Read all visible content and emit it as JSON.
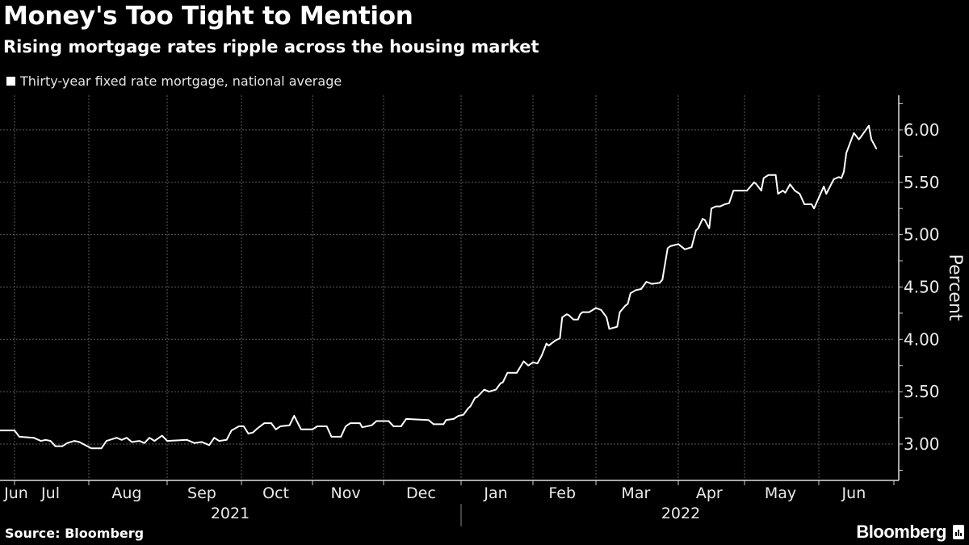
{
  "header": {
    "title": "Money's Too Tight to Mention",
    "subtitle": "Rising mortgage rates ripple across the housing market"
  },
  "footer": {
    "source": "Source: Bloomberg",
    "logo": "Bloomberg"
  },
  "colors": {
    "background": "#000000",
    "line": "#ffffff",
    "grid": "#5a5a5a"
  },
  "chart_data": {
    "type": "line",
    "title": "Money's Too Tight to Mention",
    "subtitle": "Rising mortgage rates ripple across the housing market",
    "ylabel": "Percent",
    "xlabel": "",
    "ylim": [
      2.66,
      6.35
    ],
    "yticks": [
      "3.00",
      "3.50",
      "4.00",
      "4.50",
      "5.00",
      "5.50",
      "6.00"
    ],
    "xticks": [
      {
        "label": "Jun",
        "date": "2021-06-15"
      },
      {
        "label": "Jul",
        "date": "2021-07-16"
      },
      {
        "label": "Aug",
        "date": "2021-08-16"
      },
      {
        "label": "Sep",
        "date": "2021-09-15"
      },
      {
        "label": "Oct",
        "date": "2021-10-16"
      },
      {
        "label": "Nov",
        "date": "2021-11-15"
      },
      {
        "label": "Dec",
        "date": "2021-12-16"
      },
      {
        "label": "Jan",
        "date": "2022-01-16"
      },
      {
        "label": "Feb",
        "date": "2022-02-14"
      },
      {
        "label": "Mar",
        "date": "2022-03-16"
      },
      {
        "label": "Apr",
        "date": "2022-04-15"
      },
      {
        "label": "May",
        "date": "2022-05-16"
      },
      {
        "label": "Jun",
        "date": "2022-06-15"
      }
    ],
    "year_labels": [
      "2021",
      "2022"
    ],
    "grid": true,
    "legend_position": "top-left",
    "series": [
      {
        "name": "Thirty-year fixed rate mortgage, national average",
        "points": [
          [
            "2021-06-25",
            3.13
          ],
          [
            "2021-07-01",
            3.13
          ],
          [
            "2021-07-03",
            3.07
          ],
          [
            "2021-07-09",
            3.06
          ],
          [
            "2021-07-12",
            3.03
          ],
          [
            "2021-07-14",
            3.04
          ],
          [
            "2021-07-16",
            3.03
          ],
          [
            "2021-07-18",
            2.98
          ],
          [
            "2021-07-21",
            2.98
          ],
          [
            "2021-07-23",
            3.01
          ],
          [
            "2021-07-26",
            3.03
          ],
          [
            "2021-07-28",
            3.02
          ],
          [
            "2021-08-02",
            2.96
          ],
          [
            "2021-08-06",
            2.96
          ],
          [
            "2021-08-08",
            3.03
          ],
          [
            "2021-08-12",
            3.06
          ],
          [
            "2021-08-14",
            3.04
          ],
          [
            "2021-08-16",
            3.06
          ],
          [
            "2021-08-18",
            3.02
          ],
          [
            "2021-08-21",
            3.03
          ],
          [
            "2021-08-23",
            3.01
          ],
          [
            "2021-08-25",
            3.06
          ],
          [
            "2021-08-27",
            3.03
          ],
          [
            "2021-08-30",
            3.08
          ],
          [
            "2021-09-01",
            3.03
          ],
          [
            "2021-09-09",
            3.04
          ],
          [
            "2021-09-12",
            3.01
          ],
          [
            "2021-09-15",
            3.02
          ],
          [
            "2021-09-18",
            2.99
          ],
          [
            "2021-09-20",
            3.06
          ],
          [
            "2021-09-22",
            3.03
          ],
          [
            "2021-09-25",
            3.04
          ],
          [
            "2021-09-27",
            3.13
          ],
          [
            "2021-09-30",
            3.17
          ],
          [
            "2021-10-02",
            3.17
          ],
          [
            "2021-10-04",
            3.1
          ],
          [
            "2021-10-06",
            3.11
          ],
          [
            "2021-10-08",
            3.15
          ],
          [
            "2021-10-11",
            3.2
          ],
          [
            "2021-10-14",
            3.2
          ],
          [
            "2021-10-16",
            3.14
          ],
          [
            "2021-10-18",
            3.17
          ],
          [
            "2021-10-22",
            3.18
          ],
          [
            "2021-10-24",
            3.27
          ],
          [
            "2021-10-27",
            3.14
          ],
          [
            "2021-11-01",
            3.14
          ],
          [
            "2021-11-03",
            3.17
          ],
          [
            "2021-11-07",
            3.17
          ],
          [
            "2021-11-09",
            3.07
          ],
          [
            "2021-11-13",
            3.07
          ],
          [
            "2021-11-15",
            3.17
          ],
          [
            "2021-11-17",
            3.2
          ],
          [
            "2021-11-21",
            3.2
          ],
          [
            "2021-11-22",
            3.16
          ],
          [
            "2021-11-26",
            3.18
          ],
          [
            "2021-11-28",
            3.22
          ],
          [
            "2021-12-03",
            3.22
          ],
          [
            "2021-12-05",
            3.17
          ],
          [
            "2021-12-08",
            3.17
          ],
          [
            "2021-12-10",
            3.24
          ],
          [
            "2021-12-19",
            3.23
          ],
          [
            "2021-12-21",
            3.19
          ],
          [
            "2021-12-25",
            3.19
          ],
          [
            "2021-12-26",
            3.23
          ],
          [
            "2021-12-29",
            3.24
          ],
          [
            "2021-12-31",
            3.27
          ],
          [
            "2022-01-02",
            3.28
          ],
          [
            "2022-01-04",
            3.34
          ],
          [
            "2022-01-05",
            3.36
          ],
          [
            "2022-01-07",
            3.44
          ],
          [
            "2022-01-08",
            3.45
          ],
          [
            "2022-01-11",
            3.52
          ],
          [
            "2022-01-13",
            3.5
          ],
          [
            "2022-01-16",
            3.52
          ],
          [
            "2022-01-18",
            3.58
          ],
          [
            "2022-01-19",
            3.59
          ],
          [
            "2022-01-21",
            3.68
          ],
          [
            "2022-01-25",
            3.68
          ],
          [
            "2022-01-28",
            3.79
          ],
          [
            "2022-01-30",
            3.75
          ],
          [
            "2022-02-01",
            3.78
          ],
          [
            "2022-02-03",
            3.77
          ],
          [
            "2022-02-05",
            3.85
          ],
          [
            "2022-02-07",
            3.96
          ],
          [
            "2022-02-08",
            3.94
          ],
          [
            "2022-02-11",
            3.99
          ],
          [
            "2022-02-13",
            4.01
          ],
          [
            "2022-02-14",
            4.21
          ],
          [
            "2022-02-16",
            4.24
          ],
          [
            "2022-02-17",
            4.23
          ],
          [
            "2022-02-19",
            4.19
          ],
          [
            "2022-02-21",
            4.19
          ],
          [
            "2022-02-22",
            4.24
          ],
          [
            "2022-02-23",
            4.26
          ],
          [
            "2022-02-26",
            4.26
          ],
          [
            "2022-03-01",
            4.3
          ],
          [
            "2022-03-03",
            4.28
          ],
          [
            "2022-03-05",
            4.21
          ],
          [
            "2022-03-06",
            4.1
          ],
          [
            "2022-03-09",
            4.12
          ],
          [
            "2022-03-10",
            4.26
          ],
          [
            "2022-03-12",
            4.32
          ],
          [
            "2022-03-13",
            4.34
          ],
          [
            "2022-03-14",
            4.44
          ],
          [
            "2022-03-16",
            4.47
          ],
          [
            "2022-03-18",
            4.48
          ],
          [
            "2022-03-20",
            4.55
          ],
          [
            "2022-03-22",
            4.53
          ],
          [
            "2022-03-25",
            4.54
          ],
          [
            "2022-03-26",
            4.57
          ],
          [
            "2022-03-28",
            4.87
          ],
          [
            "2022-03-29",
            4.89
          ],
          [
            "2022-04-01",
            4.91
          ],
          [
            "2022-04-04",
            4.86
          ],
          [
            "2022-04-07",
            4.88
          ],
          [
            "2022-04-09",
            5.04
          ],
          [
            "2022-04-10",
            5.06
          ],
          [
            "2022-04-12",
            5.15
          ],
          [
            "2022-04-13",
            5.14
          ],
          [
            "2022-04-15",
            5.06
          ],
          [
            "2022-04-16",
            5.25
          ],
          [
            "2022-04-18",
            5.27
          ],
          [
            "2022-04-20",
            5.27
          ],
          [
            "2022-04-22",
            5.29
          ],
          [
            "2022-04-24",
            5.3
          ],
          [
            "2022-04-26",
            5.42
          ],
          [
            "2022-04-30",
            5.42
          ],
          [
            "2022-05-02",
            5.42
          ],
          [
            "2022-05-05",
            5.5
          ],
          [
            "2022-05-06",
            5.48
          ],
          [
            "2022-05-08",
            5.42
          ],
          [
            "2022-05-09",
            5.54
          ],
          [
            "2022-05-11",
            5.57
          ],
          [
            "2022-05-14",
            5.57
          ],
          [
            "2022-05-15",
            5.39
          ],
          [
            "2022-05-17",
            5.42
          ],
          [
            "2022-05-18",
            5.4
          ],
          [
            "2022-05-20",
            5.48
          ],
          [
            "2022-05-22",
            5.42
          ],
          [
            "2022-05-24",
            5.39
          ],
          [
            "2022-05-26",
            5.29
          ],
          [
            "2022-05-29",
            5.29
          ],
          [
            "2022-05-30",
            5.25
          ],
          [
            "2022-06-03",
            5.46
          ],
          [
            "2022-06-04",
            5.39
          ],
          [
            "2022-06-07",
            5.53
          ],
          [
            "2022-06-09",
            5.55
          ],
          [
            "2022-06-10",
            5.54
          ],
          [
            "2022-06-11",
            5.6
          ],
          [
            "2022-06-12",
            5.78
          ],
          [
            "2022-06-15",
            5.97
          ],
          [
            "2022-06-17",
            5.91
          ],
          [
            "2022-06-18",
            5.94
          ],
          [
            "2022-06-21",
            6.04
          ],
          [
            "2022-06-22",
            5.91
          ],
          [
            "2022-06-24",
            5.82
          ]
        ]
      }
    ]
  }
}
